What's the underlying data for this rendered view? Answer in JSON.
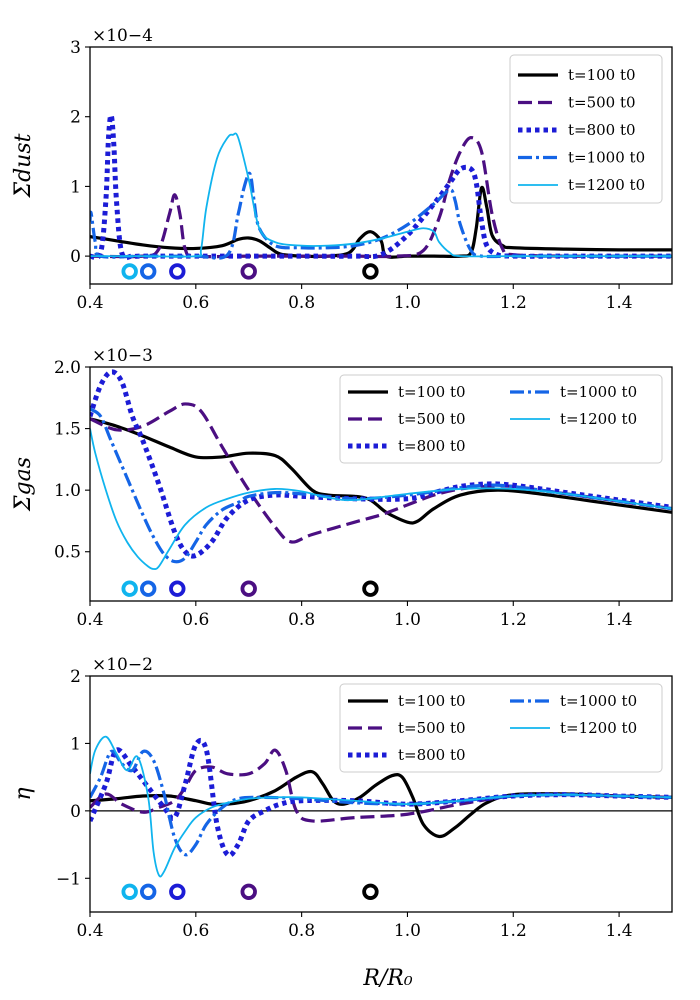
{
  "figure": {
    "xlabel": "R/R₀",
    "x_range": [
      0.4,
      1.5
    ]
  },
  "colors": {
    "t100": "#000000",
    "t500": "#4b0f82",
    "t800": "#1c1cd6",
    "t1000": "#1565e6",
    "t1200": "#10b4ee"
  },
  "chart_data": [
    {
      "type": "line",
      "id": "dust",
      "ylabel": "Σdust",
      "scale_label": "×10−4",
      "xlim": [
        0.4,
        1.5
      ],
      "ylim": [
        -0.4,
        3.0
      ],
      "xticks": [
        0.4,
        0.6,
        0.8,
        1.0,
        1.2,
        1.4
      ],
      "xtick_labels": [
        "0.4",
        "0.6",
        "0.8",
        "1.0",
        "1.2",
        "1.4"
      ],
      "yticks": [
        0,
        1,
        2,
        3
      ],
      "ytick_labels": [
        "0",
        "1",
        "2",
        "3"
      ],
      "legend": {
        "position": "top-right",
        "columns": 1
      },
      "markers": {
        "y": -0.22,
        "x": [
          0.475,
          0.51,
          0.565,
          0.7,
          0.93
        ],
        "series_order": [
          "t1200",
          "t1000",
          "t800",
          "t500",
          "t100"
        ]
      },
      "series": [
        {
          "key": "t100",
          "name": "t=100 t0",
          "x": [
            0.4,
            0.45,
            0.5,
            0.55,
            0.6,
            0.65,
            0.68,
            0.7,
            0.72,
            0.74,
            0.76,
            0.8,
            0.85,
            0.89,
            0.91,
            0.93,
            0.95,
            0.96,
            1.0,
            1.05,
            1.1,
            1.12,
            1.13,
            1.14,
            1.15,
            1.16,
            1.18,
            1.2,
            1.3,
            1.4,
            1.5
          ],
          "y": [
            0.28,
            0.22,
            0.16,
            0.12,
            0.11,
            0.15,
            0.24,
            0.26,
            0.22,
            0.12,
            0.03,
            0.0,
            0.0,
            0.05,
            0.25,
            0.35,
            0.22,
            0.0,
            0.0,
            0.0,
            0.0,
            0.05,
            0.4,
            0.98,
            0.7,
            0.3,
            0.15,
            0.12,
            0.1,
            0.09,
            0.09
          ]
        },
        {
          "key": "t500",
          "name": "t=500 t0",
          "x": [
            0.4,
            0.5,
            0.53,
            0.55,
            0.56,
            0.57,
            0.58,
            0.6,
            0.7,
            0.8,
            0.9,
            0.98,
            1.03,
            1.06,
            1.08,
            1.1,
            1.12,
            1.14,
            1.16,
            1.18,
            1.2,
            1.3,
            1.4,
            1.5
          ],
          "y": [
            0.0,
            0.0,
            0.1,
            0.6,
            0.88,
            0.6,
            0.1,
            0.0,
            0.0,
            0.0,
            0.0,
            0.0,
            0.08,
            0.55,
            1.1,
            1.5,
            1.7,
            1.5,
            0.6,
            0.1,
            0.02,
            0.0,
            0.0,
            0.0
          ]
        },
        {
          "key": "t800",
          "name": "t=800 t0",
          "x": [
            0.4,
            0.42,
            0.43,
            0.435,
            0.44,
            0.445,
            0.45,
            0.46,
            0.48,
            0.5,
            0.6,
            0.7,
            0.8,
            0.9,
            0.95,
            1.0,
            1.05,
            1.08,
            1.1,
            1.12,
            1.13,
            1.14,
            1.15,
            1.17,
            1.2,
            1.3,
            1.4,
            1.5
          ],
          "y": [
            0.0,
            0.05,
            0.8,
            1.7,
            2.02,
            1.6,
            0.8,
            0.05,
            0.0,
            0.0,
            0.0,
            0.0,
            0.0,
            0.0,
            0.02,
            0.3,
            0.75,
            1.05,
            1.25,
            1.25,
            1.05,
            0.5,
            0.15,
            0.02,
            0.0,
            0.0,
            0.0,
            0.0
          ]
        },
        {
          "key": "t1000",
          "name": "t=1000 t0",
          "x": [
            0.4,
            0.402,
            0.41,
            0.42,
            0.5,
            0.6,
            0.66,
            0.68,
            0.69,
            0.7,
            0.705,
            0.71,
            0.72,
            0.75,
            0.8,
            0.85,
            0.9,
            0.95,
            1.0,
            1.05,
            1.08,
            1.09,
            1.1,
            1.12,
            1.14,
            1.2,
            1.3,
            1.4,
            1.5
          ],
          "y": [
            0.5,
            0.62,
            0.2,
            0.0,
            0.0,
            0.0,
            0.02,
            0.6,
            0.95,
            1.18,
            1.1,
            0.8,
            0.4,
            0.15,
            0.12,
            0.12,
            0.15,
            0.25,
            0.45,
            0.75,
            0.95,
            0.8,
            0.45,
            0.08,
            0.0,
            0.0,
            0.0,
            0.0,
            0.0
          ]
        },
        {
          "key": "t1200",
          "name": "t=1200 t0",
          "x": [
            0.4,
            0.5,
            0.6,
            0.61,
            0.62,
            0.64,
            0.66,
            0.67,
            0.68,
            0.7,
            0.72,
            0.75,
            0.8,
            0.85,
            0.9,
            0.95,
            1.0,
            1.03,
            1.05,
            1.06,
            1.08,
            1.1,
            1.2,
            1.3,
            1.4,
            1.5
          ],
          "y": [
            0.0,
            0.0,
            0.0,
            0.1,
            0.7,
            1.4,
            1.7,
            1.74,
            1.7,
            1.1,
            0.4,
            0.2,
            0.15,
            0.15,
            0.18,
            0.25,
            0.35,
            0.4,
            0.35,
            0.2,
            0.05,
            0.0,
            0.0,
            0.0,
            0.0,
            0.0
          ]
        }
      ]
    },
    {
      "type": "line",
      "id": "gas",
      "ylabel": "Σgas",
      "scale_label": "×10−3",
      "xlim": [
        0.4,
        1.5
      ],
      "ylim": [
        0.1,
        2.0
      ],
      "xticks": [
        0.4,
        0.6,
        0.8,
        1.0,
        1.2,
        1.4
      ],
      "xtick_labels": [
        "0.4",
        "0.6",
        "0.8",
        "1.0",
        "1.2",
        "1.4"
      ],
      "yticks": [
        0.5,
        1.0,
        1.5,
        2.0
      ],
      "ytick_labels": [
        "0.5",
        "1.0",
        "1.5",
        "2.0"
      ],
      "legend": {
        "position": "top-right",
        "columns": 2
      },
      "markers": {
        "y": 0.2,
        "x": [
          0.475,
          0.51,
          0.565,
          0.7,
          0.93
        ],
        "series_order": [
          "t1200",
          "t1000",
          "t800",
          "t500",
          "t100"
        ]
      },
      "series": [
        {
          "key": "t100",
          "name": "t=100 t0",
          "x": [
            0.4,
            0.45,
            0.5,
            0.55,
            0.6,
            0.65,
            0.7,
            0.75,
            0.78,
            0.82,
            0.85,
            0.9,
            0.93,
            0.96,
            1.0,
            1.02,
            1.05,
            1.1,
            1.17,
            1.25,
            1.35,
            1.5
          ],
          "y": [
            1.58,
            1.52,
            1.44,
            1.35,
            1.27,
            1.27,
            1.3,
            1.28,
            1.18,
            1.0,
            0.96,
            0.95,
            0.92,
            0.82,
            0.74,
            0.75,
            0.85,
            0.96,
            1.0,
            0.97,
            0.91,
            0.82
          ]
        },
        {
          "key": "t500",
          "name": "t=500 t0",
          "x": [
            0.4,
            0.45,
            0.5,
            0.55,
            0.58,
            0.61,
            0.65,
            0.7,
            0.75,
            0.78,
            0.82,
            0.9,
            0.95,
            1.0,
            1.05,
            1.1,
            1.15,
            1.2,
            1.3,
            1.4,
            1.5
          ],
          "y": [
            1.58,
            1.49,
            1.52,
            1.64,
            1.7,
            1.64,
            1.35,
            1.0,
            0.7,
            0.58,
            0.64,
            0.74,
            0.8,
            0.88,
            0.96,
            1.01,
            1.03,
            1.03,
            0.97,
            0.91,
            0.85
          ]
        },
        {
          "key": "t800",
          "name": "t=800 t0",
          "x": [
            0.4,
            0.42,
            0.44,
            0.46,
            0.48,
            0.5,
            0.53,
            0.56,
            0.58,
            0.6,
            0.63,
            0.66,
            0.7,
            0.75,
            0.8,
            0.9,
            1.0,
            1.05,
            1.1,
            1.15,
            1.2,
            1.3,
            1.4,
            1.5
          ],
          "y": [
            1.6,
            1.85,
            1.96,
            1.88,
            1.6,
            1.4,
            1.05,
            0.66,
            0.5,
            0.47,
            0.58,
            0.78,
            0.92,
            0.96,
            0.95,
            0.93,
            0.93,
            0.98,
            1.03,
            1.05,
            1.04,
            0.98,
            0.92,
            0.86
          ]
        },
        {
          "key": "t1000",
          "name": "t=1000 t0",
          "x": [
            0.4,
            0.42,
            0.44,
            0.47,
            0.5,
            0.52,
            0.54,
            0.56,
            0.58,
            0.6,
            0.62,
            0.65,
            0.68,
            0.7,
            0.75,
            0.8,
            0.9,
            1.0,
            1.1,
            1.15,
            1.2,
            1.3,
            1.4,
            1.5
          ],
          "y": [
            1.66,
            1.6,
            1.4,
            1.1,
            0.8,
            0.62,
            0.48,
            0.42,
            0.45,
            0.58,
            0.72,
            0.84,
            0.9,
            0.95,
            0.98,
            0.97,
            0.93,
            0.96,
            1.02,
            1.04,
            1.03,
            0.97,
            0.91,
            0.85
          ]
        },
        {
          "key": "t1200",
          "name": "t=1200 t0",
          "x": [
            0.4,
            0.41,
            0.43,
            0.45,
            0.47,
            0.49,
            0.51,
            0.52,
            0.53,
            0.55,
            0.58,
            0.62,
            0.66,
            0.7,
            0.75,
            0.8,
            0.85,
            0.9,
            1.0,
            1.1,
            1.2,
            1.3,
            1.4,
            1.5
          ],
          "y": [
            1.5,
            1.3,
            1.0,
            0.75,
            0.58,
            0.46,
            0.38,
            0.36,
            0.38,
            0.52,
            0.72,
            0.86,
            0.93,
            0.98,
            1.01,
            0.99,
            0.94,
            0.92,
            0.97,
            1.01,
            1.01,
            0.97,
            0.91,
            0.85
          ]
        }
      ]
    },
    {
      "type": "line",
      "id": "eta",
      "ylabel": "η",
      "scale_label": "×10−2",
      "xlim": [
        0.4,
        1.5
      ],
      "ylim": [
        -1.5,
        2.0
      ],
      "xticks": [
        0.4,
        0.6,
        0.8,
        1.0,
        1.2,
        1.4
      ],
      "xtick_labels": [
        "0.4",
        "0.6",
        "0.8",
        "1.0",
        "1.2",
        "1.4"
      ],
      "yticks": [
        -1,
        0,
        1,
        2
      ],
      "ytick_labels": [
        "−1",
        "0",
        "1",
        "2"
      ],
      "zero_line": true,
      "legend": {
        "position": "top-right",
        "columns": 2
      },
      "markers": {
        "y": -1.2,
        "x": [
          0.475,
          0.51,
          0.565,
          0.7,
          0.93
        ],
        "series_order": [
          "t1200",
          "t1000",
          "t800",
          "t500",
          "t100"
        ]
      },
      "series": [
        {
          "key": "t100",
          "name": "t=100 t0",
          "x": [
            0.4,
            0.45,
            0.5,
            0.55,
            0.6,
            0.63,
            0.66,
            0.7,
            0.75,
            0.79,
            0.82,
            0.84,
            0.86,
            0.88,
            0.91,
            0.94,
            0.97,
            0.99,
            1.01,
            1.03,
            1.06,
            1.09,
            1.12,
            1.15,
            1.2,
            1.3,
            1.4,
            1.5
          ],
          "y": [
            0.15,
            0.18,
            0.22,
            0.22,
            0.15,
            0.1,
            0.1,
            0.15,
            0.3,
            0.5,
            0.58,
            0.4,
            0.15,
            0.1,
            0.2,
            0.38,
            0.52,
            0.5,
            0.2,
            -0.2,
            -0.38,
            -0.25,
            -0.05,
            0.12,
            0.24,
            0.25,
            0.22,
            0.2
          ]
        },
        {
          "key": "t500",
          "name": "t=500 t0",
          "x": [
            0.4,
            0.43,
            0.46,
            0.5,
            0.53,
            0.56,
            0.58,
            0.6,
            0.63,
            0.66,
            0.7,
            0.73,
            0.75,
            0.77,
            0.79,
            0.82,
            0.9,
            1.0,
            1.1,
            1.2,
            1.3,
            1.4,
            1.5
          ],
          "y": [
            0.05,
            0.25,
            0.1,
            -0.02,
            0.05,
            0.15,
            0.35,
            0.6,
            0.65,
            0.55,
            0.55,
            0.7,
            0.9,
            0.6,
            0.0,
            -0.15,
            -0.1,
            -0.05,
            0.1,
            0.22,
            0.24,
            0.22,
            0.2
          ]
        },
        {
          "key": "t800",
          "name": "t=800 t0",
          "x": [
            0.4,
            0.43,
            0.45,
            0.48,
            0.51,
            0.54,
            0.56,
            0.58,
            0.6,
            0.62,
            0.64,
            0.66,
            0.68,
            0.7,
            0.73,
            0.76,
            0.8,
            0.9,
            1.0,
            1.1,
            1.2,
            1.3,
            1.4,
            1.5
          ],
          "y": [
            -0.15,
            0.4,
            0.9,
            0.65,
            0.35,
            0.05,
            -0.1,
            0.4,
            0.98,
            0.9,
            -0.2,
            -0.65,
            -0.5,
            -0.15,
            0.0,
            0.1,
            0.15,
            0.15,
            0.1,
            0.15,
            0.22,
            0.24,
            0.22,
            0.2
          ]
        },
        {
          "key": "t1000",
          "name": "t=1000 t0",
          "x": [
            0.4,
            0.42,
            0.44,
            0.46,
            0.48,
            0.5,
            0.52,
            0.54,
            0.56,
            0.58,
            0.6,
            0.62,
            0.65,
            0.68,
            0.72,
            0.8,
            0.9,
            1.0,
            1.1,
            1.2,
            1.3,
            1.4,
            1.5
          ],
          "y": [
            0.2,
            0.5,
            0.88,
            0.7,
            0.6,
            0.88,
            0.75,
            0.25,
            -0.4,
            -0.65,
            -0.5,
            -0.2,
            0.05,
            0.18,
            0.2,
            0.18,
            0.12,
            0.1,
            0.15,
            0.22,
            0.24,
            0.22,
            0.2
          ]
        },
        {
          "key": "t1200",
          "name": "t=1200 t0",
          "x": [
            0.4,
            0.41,
            0.43,
            0.45,
            0.47,
            0.49,
            0.51,
            0.52,
            0.53,
            0.54,
            0.56,
            0.58,
            0.6,
            0.63,
            0.66,
            0.7,
            0.75,
            0.8,
            0.9,
            1.0,
            1.1,
            1.2,
            1.3,
            1.4,
            1.5
          ],
          "y": [
            0.55,
            0.9,
            1.1,
            0.85,
            0.6,
            0.8,
            0.2,
            -0.6,
            -0.95,
            -0.9,
            -0.55,
            -0.3,
            -0.1,
            0.05,
            0.12,
            0.18,
            0.2,
            0.2,
            0.15,
            0.1,
            0.15,
            0.22,
            0.24,
            0.22,
            0.2
          ]
        }
      ]
    }
  ]
}
